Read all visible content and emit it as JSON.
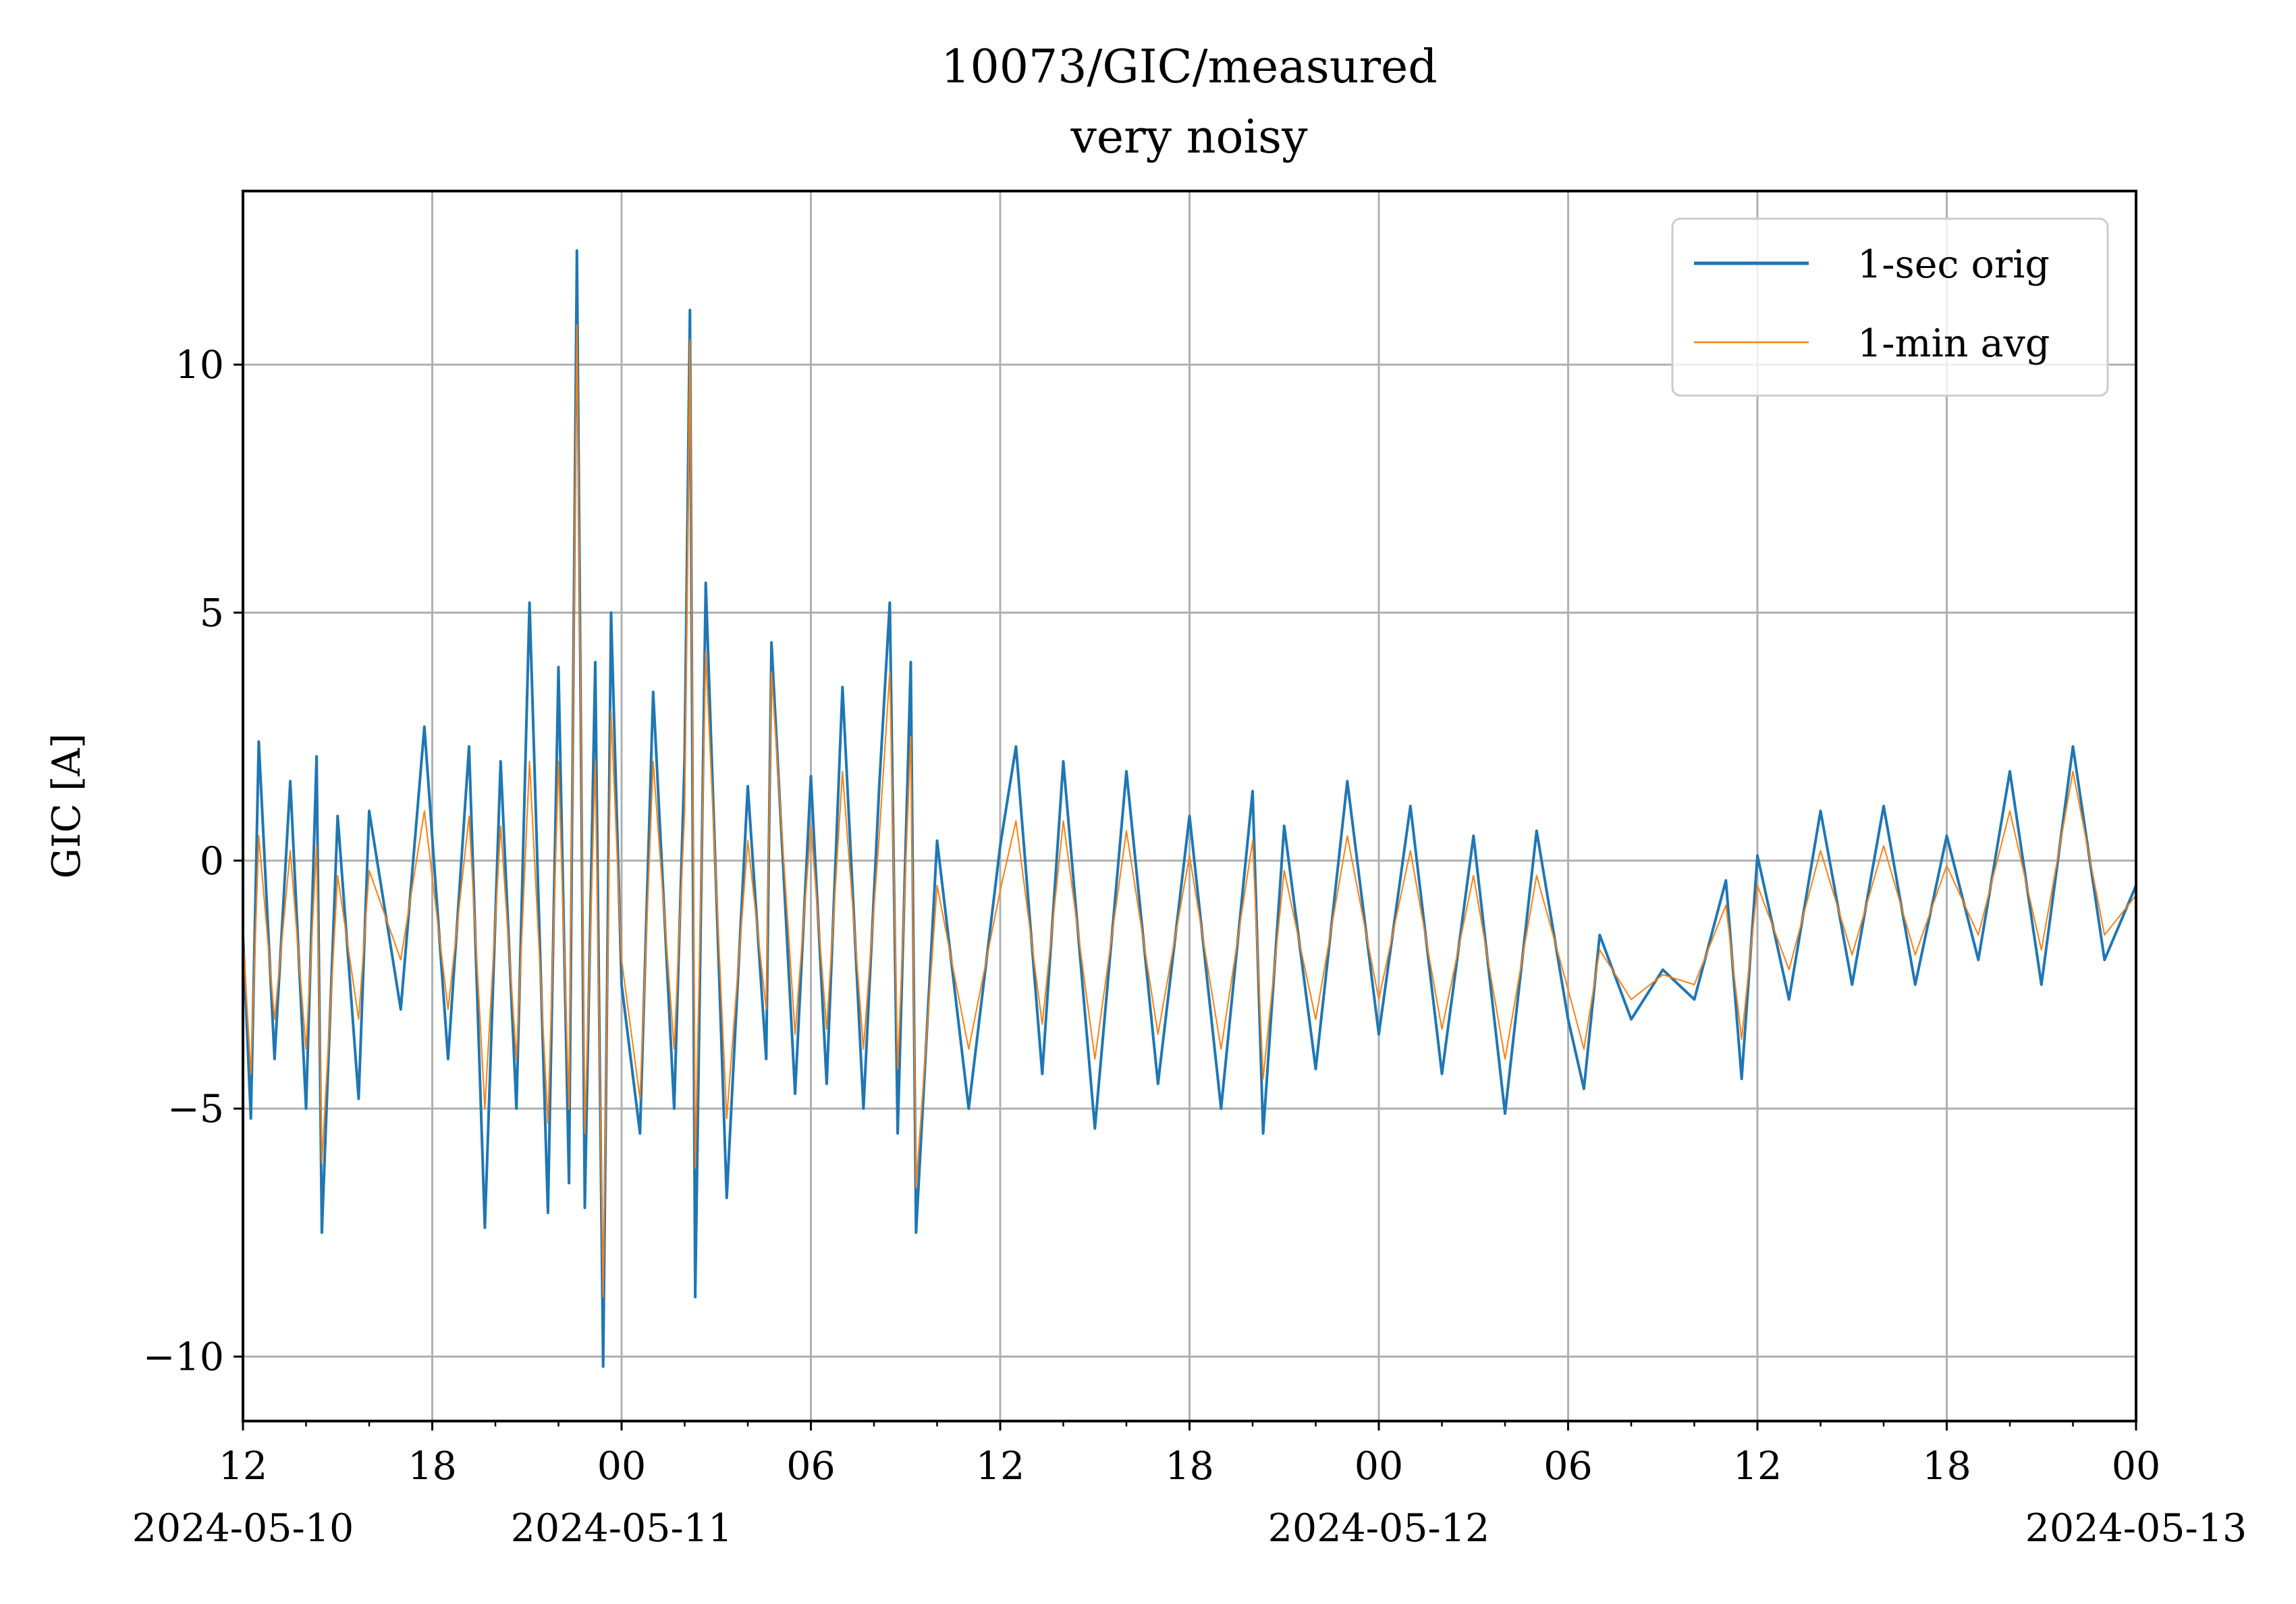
{
  "chart_data": {
    "type": "line",
    "title": "10073/GIC/measured",
    "subtitle": "very noisy",
    "xlabel": "",
    "ylabel": "GIC [A]",
    "xlim": [
      "2024-05-10 12:00",
      "2024-05-13 00:00"
    ],
    "ylim": [
      -11.3,
      13.5
    ],
    "grid": true,
    "legend_position": "top-right",
    "x_major_ticks": [
      {
        "at": "2024-05-10 12:00",
        "label": "12",
        "date_label": "2024-05-10"
      },
      {
        "at": "2024-05-10 18:00",
        "label": "18",
        "date_label": ""
      },
      {
        "at": "2024-05-11 00:00",
        "label": "00",
        "date_label": "2024-05-11"
      },
      {
        "at": "2024-05-11 06:00",
        "label": "06",
        "date_label": ""
      },
      {
        "at": "2024-05-11 12:00",
        "label": "12",
        "date_label": ""
      },
      {
        "at": "2024-05-11 18:00",
        "label": "18",
        "date_label": ""
      },
      {
        "at": "2024-05-12 00:00",
        "label": "00",
        "date_label": "2024-05-12"
      },
      {
        "at": "2024-05-12 06:00",
        "label": "06",
        "date_label": ""
      },
      {
        "at": "2024-05-12 12:00",
        "label": "12",
        "date_label": ""
      },
      {
        "at": "2024-05-12 18:00",
        "label": "18",
        "date_label": ""
      },
      {
        "at": "2024-05-13 00:00",
        "label": "00",
        "date_label": "2024-05-13"
      }
    ],
    "y_ticks": [
      {
        "value": -10,
        "label": "−10"
      },
      {
        "value": -5,
        "label": "−5"
      },
      {
        "value": 0,
        "label": "0"
      },
      {
        "value": 5,
        "label": "5"
      },
      {
        "value": 10,
        "label": "10"
      }
    ],
    "series": [
      {
        "name": "1-sec orig",
        "color": "#1f77b4",
        "points": [
          [
            "2024-05-10 12:00",
            -1.5
          ],
          [
            "2024-05-10 12:15",
            -5.2
          ],
          [
            "2024-05-10 12:30",
            2.4
          ],
          [
            "2024-05-10 13:00",
            -4.0
          ],
          [
            "2024-05-10 13:30",
            1.6
          ],
          [
            "2024-05-10 14:00",
            -5.0
          ],
          [
            "2024-05-10 14:20",
            2.1
          ],
          [
            "2024-05-10 14:30",
            -7.5
          ],
          [
            "2024-05-10 15:00",
            0.9
          ],
          [
            "2024-05-10 15:40",
            -4.8
          ],
          [
            "2024-05-10 16:00",
            1.0
          ],
          [
            "2024-05-10 17:00",
            -3.0
          ],
          [
            "2024-05-10 17:45",
            2.7
          ],
          [
            "2024-05-10 18:30",
            -4.0
          ],
          [
            "2024-05-10 19:10",
            2.3
          ],
          [
            "2024-05-10 19:40",
            -7.4
          ],
          [
            "2024-05-10 20:10",
            2.0
          ],
          [
            "2024-05-10 20:40",
            -5.0
          ],
          [
            "2024-05-10 21:05",
            5.2
          ],
          [
            "2024-05-10 21:40",
            -7.1
          ],
          [
            "2024-05-10 22:00",
            3.9
          ],
          [
            "2024-05-10 22:20",
            -6.5
          ],
          [
            "2024-05-10 22:35",
            12.3
          ],
          [
            "2024-05-10 22:50",
            -7.0
          ],
          [
            "2024-05-10 23:10",
            4.0
          ],
          [
            "2024-05-10 23:25",
            -10.2
          ],
          [
            "2024-05-10 23:40",
            5.0
          ],
          [
            "2024-05-11 00:00",
            -2.5
          ],
          [
            "2024-05-11 00:35",
            -5.5
          ],
          [
            "2024-05-11 01:00",
            3.4
          ],
          [
            "2024-05-11 01:40",
            -5.0
          ],
          [
            "2024-05-11 02:00",
            2.1
          ],
          [
            "2024-05-11 02:10",
            11.1
          ],
          [
            "2024-05-11 02:20",
            -8.8
          ],
          [
            "2024-05-11 02:40",
            5.6
          ],
          [
            "2024-05-11 03:20",
            -6.8
          ],
          [
            "2024-05-11 04:00",
            1.5
          ],
          [
            "2024-05-11 04:35",
            -4.0
          ],
          [
            "2024-05-11 04:45",
            4.4
          ],
          [
            "2024-05-11 05:30",
            -4.7
          ],
          [
            "2024-05-11 06:00",
            1.7
          ],
          [
            "2024-05-11 06:30",
            -4.5
          ],
          [
            "2024-05-11 07:00",
            3.5
          ],
          [
            "2024-05-11 07:40",
            -5.0
          ],
          [
            "2024-05-11 08:10",
            1.5
          ],
          [
            "2024-05-11 08:30",
            5.2
          ],
          [
            "2024-05-11 08:45",
            -5.5
          ],
          [
            "2024-05-11 09:10",
            4.0
          ],
          [
            "2024-05-11 09:20",
            -7.5
          ],
          [
            "2024-05-11 10:00",
            0.4
          ],
          [
            "2024-05-11 11:00",
            -5.0
          ],
          [
            "2024-05-11 12:00",
            0.3
          ],
          [
            "2024-05-11 12:30",
            2.3
          ],
          [
            "2024-05-11 13:20",
            -4.3
          ],
          [
            "2024-05-11 14:00",
            2.0
          ],
          [
            "2024-05-11 15:00",
            -5.4
          ],
          [
            "2024-05-11 16:00",
            1.8
          ],
          [
            "2024-05-11 17:00",
            -4.5
          ],
          [
            "2024-05-11 18:00",
            0.9
          ],
          [
            "2024-05-11 19:00",
            -5.0
          ],
          [
            "2024-05-11 20:00",
            1.4
          ],
          [
            "2024-05-11 20:20",
            -5.5
          ],
          [
            "2024-05-11 21:00",
            0.7
          ],
          [
            "2024-05-11 22:00",
            -4.2
          ],
          [
            "2024-05-11 23:00",
            1.6
          ],
          [
            "2024-05-12 00:00",
            -3.5
          ],
          [
            "2024-05-12 01:00",
            1.1
          ],
          [
            "2024-05-12 02:00",
            -4.3
          ],
          [
            "2024-05-12 03:00",
            0.5
          ],
          [
            "2024-05-12 04:00",
            -5.1
          ],
          [
            "2024-05-12 05:00",
            0.6
          ],
          [
            "2024-05-12 06:00",
            -3.2
          ],
          [
            "2024-05-12 06:30",
            -4.6
          ],
          [
            "2024-05-12 07:00",
            -1.5
          ],
          [
            "2024-05-12 08:00",
            -3.2
          ],
          [
            "2024-05-12 09:00",
            -2.2
          ],
          [
            "2024-05-12 10:00",
            -2.8
          ],
          [
            "2024-05-12 11:00",
            -0.4
          ],
          [
            "2024-05-12 11:30",
            -4.4
          ],
          [
            "2024-05-12 12:00",
            0.1
          ],
          [
            "2024-05-12 13:00",
            -2.8
          ],
          [
            "2024-05-12 14:00",
            1.0
          ],
          [
            "2024-05-12 15:00",
            -2.5
          ],
          [
            "2024-05-12 16:00",
            1.1
          ],
          [
            "2024-05-12 17:00",
            -2.5
          ],
          [
            "2024-05-12 18:00",
            0.5
          ],
          [
            "2024-05-12 19:00",
            -2.0
          ],
          [
            "2024-05-12 20:00",
            1.8
          ],
          [
            "2024-05-12 21:00",
            -2.5
          ],
          [
            "2024-05-12 22:00",
            2.3
          ],
          [
            "2024-05-12 23:00",
            -2.0
          ],
          [
            "2024-05-13 00:00",
            -0.5
          ]
        ]
      },
      {
        "name": "1-min avg",
        "color": "#ff7f0e",
        "points": [
          [
            "2024-05-10 12:00",
            -1.5
          ],
          [
            "2024-05-10 12:15",
            -4.3
          ],
          [
            "2024-05-10 12:30",
            0.5
          ],
          [
            "2024-05-10 13:00",
            -3.2
          ],
          [
            "2024-05-10 13:30",
            0.2
          ],
          [
            "2024-05-10 14:00",
            -3.8
          ],
          [
            "2024-05-10 14:20",
            0.3
          ],
          [
            "2024-05-10 14:30",
            -6.1
          ],
          [
            "2024-05-10 15:00",
            -0.3
          ],
          [
            "2024-05-10 15:40",
            -3.2
          ],
          [
            "2024-05-10 16:00",
            -0.2
          ],
          [
            "2024-05-10 17:00",
            -2.0
          ],
          [
            "2024-05-10 17:45",
            1.0
          ],
          [
            "2024-05-10 18:30",
            -3.0
          ],
          [
            "2024-05-10 19:10",
            0.9
          ],
          [
            "2024-05-10 19:40",
            -5.0
          ],
          [
            "2024-05-10 20:10",
            0.7
          ],
          [
            "2024-05-10 20:40",
            -4.0
          ],
          [
            "2024-05-10 21:05",
            2.0
          ],
          [
            "2024-05-10 21:40",
            -5.3
          ],
          [
            "2024-05-10 22:00",
            2.0
          ],
          [
            "2024-05-10 22:20",
            -5.0
          ],
          [
            "2024-05-10 22:35",
            10.8
          ],
          [
            "2024-05-10 22:50",
            -5.5
          ],
          [
            "2024-05-10 23:10",
            2.0
          ],
          [
            "2024-05-10 23:25",
            -8.8
          ],
          [
            "2024-05-10 23:40",
            3.0
          ],
          [
            "2024-05-11 00:00",
            -2.0
          ],
          [
            "2024-05-11 00:35",
            -4.8
          ],
          [
            "2024-05-11 01:00",
            2.0
          ],
          [
            "2024-05-11 01:40",
            -3.8
          ],
          [
            "2024-05-11 02:00",
            1.0
          ],
          [
            "2024-05-11 02:10",
            10.5
          ],
          [
            "2024-05-11 02:20",
            -6.2
          ],
          [
            "2024-05-11 02:40",
            4.2
          ],
          [
            "2024-05-11 03:20",
            -5.2
          ],
          [
            "2024-05-11 04:00",
            0.4
          ],
          [
            "2024-05-11 04:35",
            -3.0
          ],
          [
            "2024-05-11 04:45",
            3.8
          ],
          [
            "2024-05-11 05:30",
            -3.5
          ],
          [
            "2024-05-11 06:00",
            0.7
          ],
          [
            "2024-05-11 06:30",
            -3.4
          ],
          [
            "2024-05-11 07:00",
            1.8
          ],
          [
            "2024-05-11 07:40",
            -3.8
          ],
          [
            "2024-05-11 08:10",
            0.5
          ],
          [
            "2024-05-11 08:30",
            3.8
          ],
          [
            "2024-05-11 08:45",
            -4.2
          ],
          [
            "2024-05-11 09:10",
            2.5
          ],
          [
            "2024-05-11 09:20",
            -6.6
          ],
          [
            "2024-05-11 10:00",
            -0.5
          ],
          [
            "2024-05-11 11:00",
            -3.8
          ],
          [
            "2024-05-11 12:00",
            -0.6
          ],
          [
            "2024-05-11 12:30",
            0.8
          ],
          [
            "2024-05-11 13:20",
            -3.3
          ],
          [
            "2024-05-11 14:00",
            0.8
          ],
          [
            "2024-05-11 15:00",
            -4.0
          ],
          [
            "2024-05-11 16:00",
            0.6
          ],
          [
            "2024-05-11 17:00",
            -3.5
          ],
          [
            "2024-05-11 18:00",
            0.1
          ],
          [
            "2024-05-11 19:00",
            -3.8
          ],
          [
            "2024-05-11 20:00",
            0.4
          ],
          [
            "2024-05-11 20:20",
            -4.4
          ],
          [
            "2024-05-11 21:00",
            -0.2
          ],
          [
            "2024-05-11 22:00",
            -3.2
          ],
          [
            "2024-05-11 23:00",
            0.5
          ],
          [
            "2024-05-12 00:00",
            -2.8
          ],
          [
            "2024-05-12 01:00",
            0.2
          ],
          [
            "2024-05-12 02:00",
            -3.4
          ],
          [
            "2024-05-12 03:00",
            -0.3
          ],
          [
            "2024-05-12 04:00",
            -4.0
          ],
          [
            "2024-05-12 05:00",
            -0.3
          ],
          [
            "2024-05-12 06:00",
            -2.6
          ],
          [
            "2024-05-12 06:30",
            -3.8
          ],
          [
            "2024-05-12 07:00",
            -1.8
          ],
          [
            "2024-05-12 08:00",
            -2.8
          ],
          [
            "2024-05-12 09:00",
            -2.3
          ],
          [
            "2024-05-12 10:00",
            -2.5
          ],
          [
            "2024-05-12 11:00",
            -0.9
          ],
          [
            "2024-05-12 11:30",
            -3.6
          ],
          [
            "2024-05-12 12:00",
            -0.5
          ],
          [
            "2024-05-12 13:00",
            -2.2
          ],
          [
            "2024-05-12 14:00",
            0.2
          ],
          [
            "2024-05-12 15:00",
            -1.9
          ],
          [
            "2024-05-12 16:00",
            0.3
          ],
          [
            "2024-05-12 17:00",
            -1.9
          ],
          [
            "2024-05-12 18:00",
            -0.1
          ],
          [
            "2024-05-12 19:00",
            -1.5
          ],
          [
            "2024-05-12 20:00",
            1.0
          ],
          [
            "2024-05-12 21:00",
            -1.8
          ],
          [
            "2024-05-12 22:00",
            1.8
          ],
          [
            "2024-05-12 23:00",
            -1.5
          ],
          [
            "2024-05-13 00:00",
            -0.7
          ]
        ]
      }
    ]
  }
}
